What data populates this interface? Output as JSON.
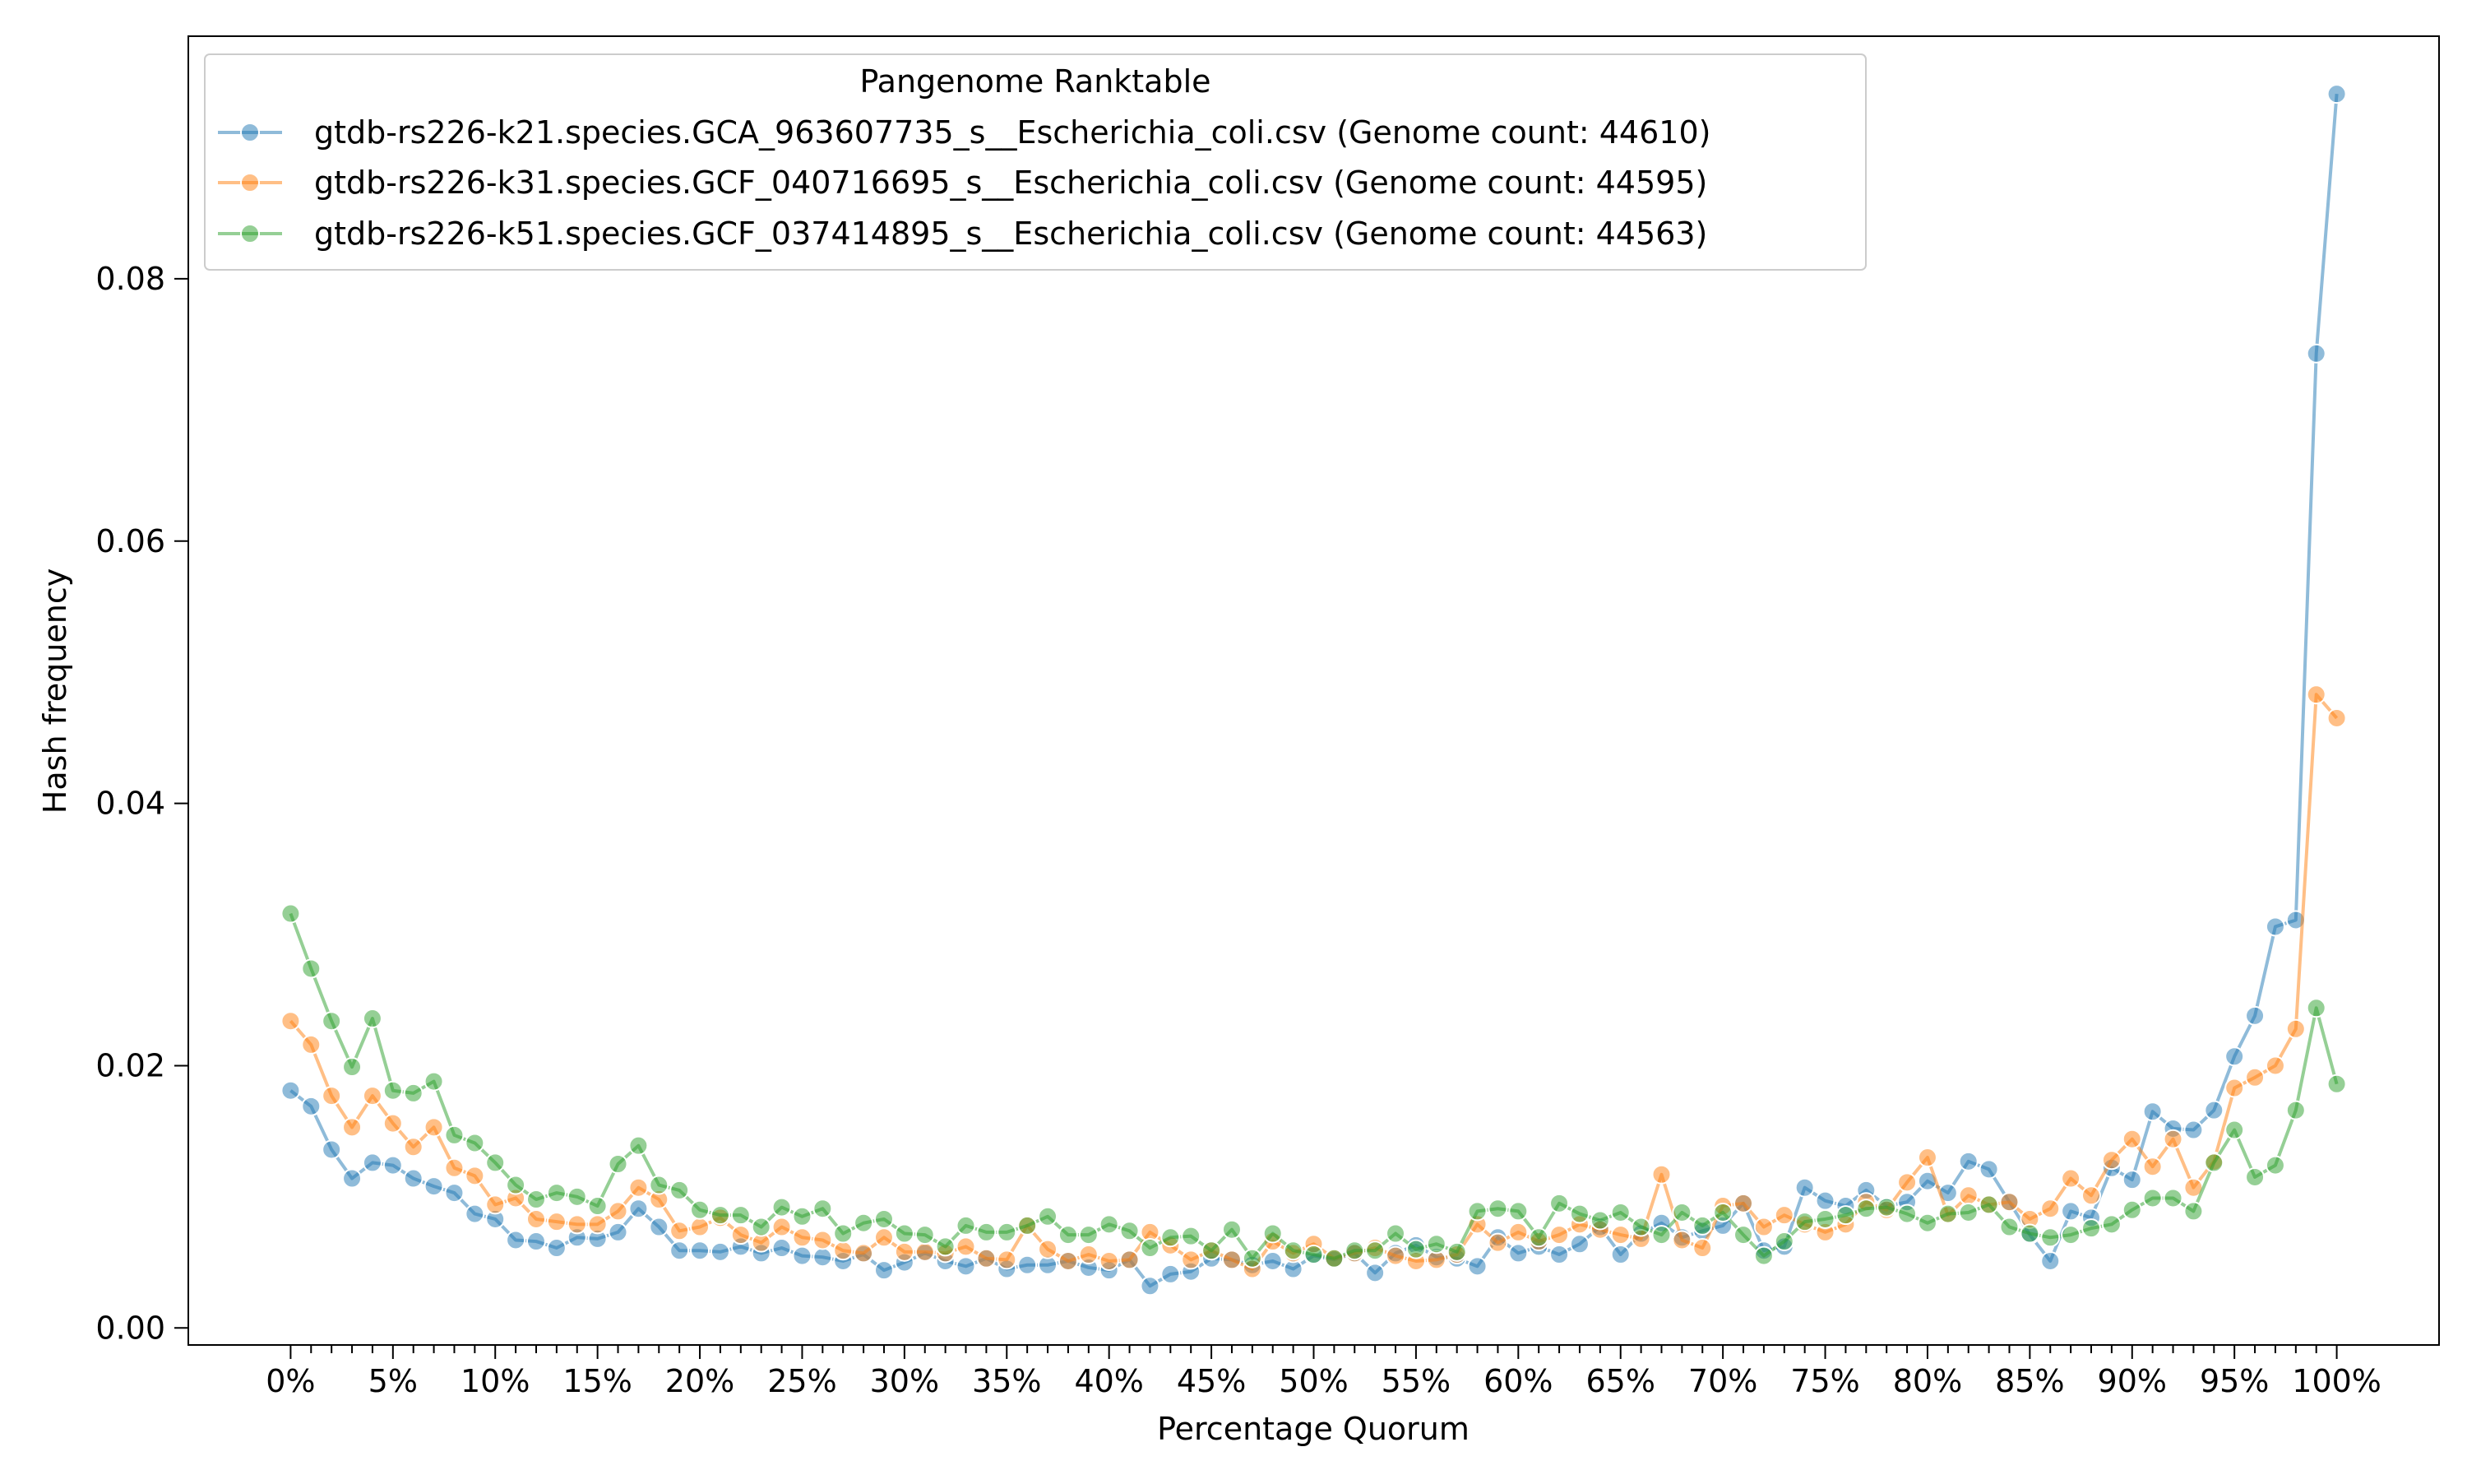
{
  "chart_data": {
    "type": "line",
    "xlabel": "Percentage Quorum",
    "ylabel": "Hash frequency",
    "xlim": [
      -5,
      105
    ],
    "ylim": [
      -0.0013,
      0.0985
    ],
    "x_ticks_major": [
      0,
      5,
      10,
      15,
      20,
      25,
      30,
      35,
      40,
      45,
      50,
      55,
      60,
      65,
      70,
      75,
      80,
      85,
      90,
      95,
      100
    ],
    "x_tick_labels": [
      "0%",
      "5%",
      "10%",
      "15%",
      "20%",
      "25%",
      "30%",
      "35%",
      "40%",
      "45%",
      "50%",
      "55%",
      "60%",
      "65%",
      "70%",
      "75%",
      "80%",
      "85%",
      "90%",
      "95%",
      "100%"
    ],
    "y_ticks": [
      0.0,
      0.02,
      0.04,
      0.06,
      0.08
    ],
    "y_tick_labels": [
      "0.00",
      "0.02",
      "0.04",
      "0.06",
      "0.08"
    ],
    "grid": false,
    "legend": {
      "title": "Pangenome Ranktable",
      "placement": "top-left"
    },
    "series": [
      {
        "name": "gtdb-rs226-k21.species.GCA_963607735_s__Escherichia_coli.csv (Genome count: 44610)",
        "color": "#1f77b4",
        "values": [
          0.0181,
          0.0169,
          0.0136,
          0.0114,
          0.0126,
          0.0124,
          0.0114,
          0.0108,
          0.0103,
          0.0087,
          0.0083,
          0.0067,
          0.0066,
          0.0061,
          0.0069,
          0.0068,
          0.0073,
          0.0091,
          0.0077,
          0.0059,
          0.0059,
          0.0058,
          0.0062,
          0.0057,
          0.0061,
          0.0055,
          0.0054,
          0.0051,
          0.0056,
          0.0044,
          0.005,
          0.0057,
          0.0051,
          0.0047,
          0.0053,
          0.0045,
          0.0048,
          0.0048,
          0.0051,
          0.0046,
          0.0044,
          0.0052,
          0.0032,
          0.0041,
          0.0043,
          0.0053,
          0.0052,
          0.0048,
          0.0051,
          0.0045,
          0.0055,
          0.0052,
          0.0057,
          0.0042,
          0.0057,
          0.0063,
          0.0054,
          0.0053,
          0.0047,
          0.0069,
          0.0057,
          0.0062,
          0.0056,
          0.0064,
          0.0077,
          0.0056,
          0.0072,
          0.008,
          0.0069,
          0.0074,
          0.0078,
          0.0095,
          0.0059,
          0.0062,
          0.0107,
          0.0097,
          0.0093,
          0.0105,
          0.0093,
          0.0096,
          0.0112,
          0.0103,
          0.0127,
          0.0121,
          0.0096,
          0.0071,
          0.0051,
          0.0089,
          0.0084,
          0.0122,
          0.0113,
          0.0165,
          0.0152,
          0.0151,
          0.0166,
          0.0207,
          0.0238,
          0.0306,
          0.0311,
          0.0743,
          0.0941
        ]
      },
      {
        "name": "gtdb-rs226-k31.species.GCF_040716695_s__Escherichia_coli.csv (Genome count: 44595)",
        "color": "#ff7f0e",
        "values": [
          0.0234,
          0.0216,
          0.0177,
          0.0153,
          0.0177,
          0.0156,
          0.0138,
          0.0153,
          0.0122,
          0.0116,
          0.0094,
          0.0099,
          0.0083,
          0.0081,
          0.0079,
          0.0079,
          0.0089,
          0.0107,
          0.0098,
          0.0074,
          0.0077,
          0.0084,
          0.0071,
          0.0065,
          0.0077,
          0.0069,
          0.0067,
          0.0059,
          0.0057,
          0.0069,
          0.0058,
          0.0058,
          0.0057,
          0.0062,
          0.0053,
          0.0052,
          0.0078,
          0.006,
          0.0051,
          0.0056,
          0.0051,
          0.0052,
          0.0073,
          0.0063,
          0.0052,
          0.0059,
          0.0052,
          0.0045,
          0.0066,
          0.0057,
          0.0064,
          0.0053,
          0.0057,
          0.0061,
          0.0055,
          0.0051,
          0.0052,
          0.0056,
          0.0079,
          0.0065,
          0.0073,
          0.0066,
          0.0071,
          0.0079,
          0.0075,
          0.0071,
          0.0068,
          0.0117,
          0.0067,
          0.0061,
          0.0093,
          0.0095,
          0.0077,
          0.0086,
          0.0079,
          0.0073,
          0.0079,
          0.0096,
          0.009,
          0.0111,
          0.013,
          0.0086,
          0.0101,
          0.0094,
          0.0096,
          0.0083,
          0.0091,
          0.0114,
          0.0101,
          0.0128,
          0.0144,
          0.0123,
          0.0144,
          0.0107,
          0.0127,
          0.0183,
          0.0191,
          0.02,
          0.0228,
          0.0483,
          0.0465
        ]
      },
      {
        "name": "gtdb-rs226-k51.species.GCF_037414895_s__Escherichia_coli.csv (Genome count: 44563)",
        "color": "#2ca02c",
        "values": [
          0.0316,
          0.0274,
          0.0234,
          0.0199,
          0.0236,
          0.0181,
          0.0179,
          0.0188,
          0.0147,
          0.0141,
          0.0126,
          0.0109,
          0.0098,
          0.0103,
          0.01,
          0.0093,
          0.0125,
          0.0139,
          0.0109,
          0.0105,
          0.009,
          0.0086,
          0.0086,
          0.0077,
          0.0092,
          0.0085,
          0.0091,
          0.0072,
          0.008,
          0.0083,
          0.0072,
          0.0071,
          0.0062,
          0.0078,
          0.0073,
          0.0073,
          0.0078,
          0.0085,
          0.0071,
          0.0071,
          0.0079,
          0.0074,
          0.0061,
          0.0069,
          0.007,
          0.0059,
          0.0075,
          0.0053,
          0.0072,
          0.0059,
          0.0056,
          0.0053,
          0.0059,
          0.0059,
          0.0072,
          0.006,
          0.0064,
          0.0058,
          0.0089,
          0.0091,
          0.0089,
          0.0069,
          0.0095,
          0.0087,
          0.0082,
          0.0088,
          0.0077,
          0.0071,
          0.0088,
          0.0078,
          0.0088,
          0.0071,
          0.0055,
          0.0066,
          0.0081,
          0.0083,
          0.0086,
          0.0091,
          0.0092,
          0.0087,
          0.008,
          0.0087,
          0.0088,
          0.0094,
          0.0077,
          0.0072,
          0.0069,
          0.0071,
          0.0076,
          0.0079,
          0.009,
          0.0099,
          0.0099,
          0.0089,
          0.0126,
          0.0151,
          0.0115,
          0.0124,
          0.0166,
          0.0244,
          0.0186
        ]
      }
    ]
  }
}
